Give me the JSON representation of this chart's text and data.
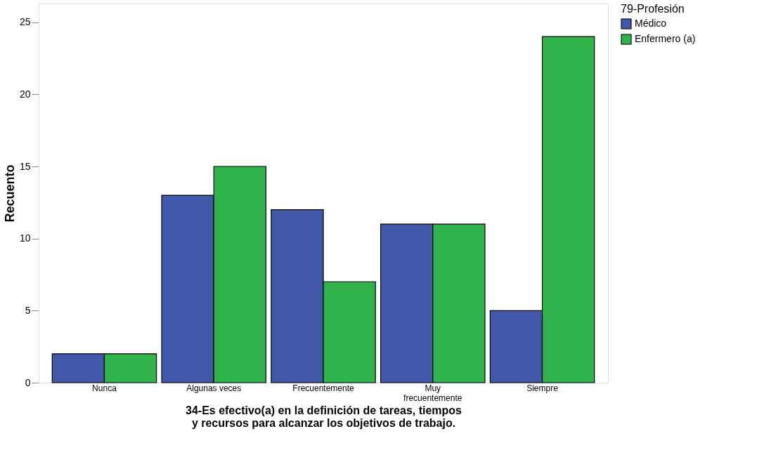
{
  "chart_data": {
    "type": "bar",
    "xlabel": "34-Es efectivo(a) en la definición de tareas, tiempos y recursos para alcanzar los objetivos de trabajo.",
    "ylabel": "Recuento",
    "legend_title": "79-Profesión",
    "legend": "right",
    "grid": false,
    "categories": [
      "Nunca",
      "Algunas veces",
      "Frecuentemente",
      "Muy frecuentemente",
      "Siempre"
    ],
    "ylim": [
      0,
      26.3
    ],
    "yticks": [
      0,
      5,
      10,
      15,
      20,
      25
    ],
    "series": [
      {
        "name": "Médico",
        "color": "#3f58a8",
        "values": [
          2,
          13,
          12,
          11,
          5
        ]
      },
      {
        "name": "Enfermero (a)",
        "color": "#2fb34a",
        "values": [
          2,
          15,
          7,
          11,
          24
        ]
      }
    ]
  }
}
